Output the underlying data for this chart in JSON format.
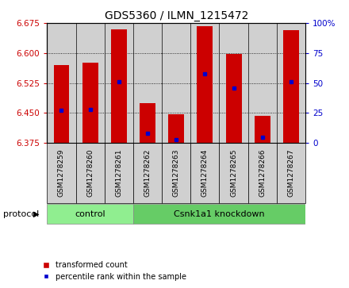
{
  "title": "GDS5360 / ILMN_1215472",
  "samples": [
    "GSM1278259",
    "GSM1278260",
    "GSM1278261",
    "GSM1278262",
    "GSM1278263",
    "GSM1278264",
    "GSM1278265",
    "GSM1278266",
    "GSM1278267"
  ],
  "transformed_count": [
    6.57,
    6.575,
    6.66,
    6.475,
    6.447,
    6.668,
    6.597,
    6.443,
    6.658
  ],
  "percentile_rank": [
    27,
    28,
    51,
    8,
    3,
    58,
    46,
    5,
    51
  ],
  "y_min": 6.375,
  "y_max": 6.675,
  "y_ticks": [
    6.375,
    6.45,
    6.525,
    6.6,
    6.675
  ],
  "y2_ticks": [
    0,
    25,
    50,
    75,
    100
  ],
  "bar_color": "#cc0000",
  "dot_color": "#0000cc",
  "control_color": "#90ee90",
  "knockdown_color": "#66cc66",
  "control_label": "control",
  "knockdown_label": "Csnk1a1 knockdown",
  "protocol_label": "protocol",
  "legend_bar_label": "transformed count",
  "legend_dot_label": "percentile rank within the sample",
  "tick_color_left": "#cc0000",
  "tick_color_right": "#0000cc",
  "n_control": 3,
  "n_knockdown": 6
}
